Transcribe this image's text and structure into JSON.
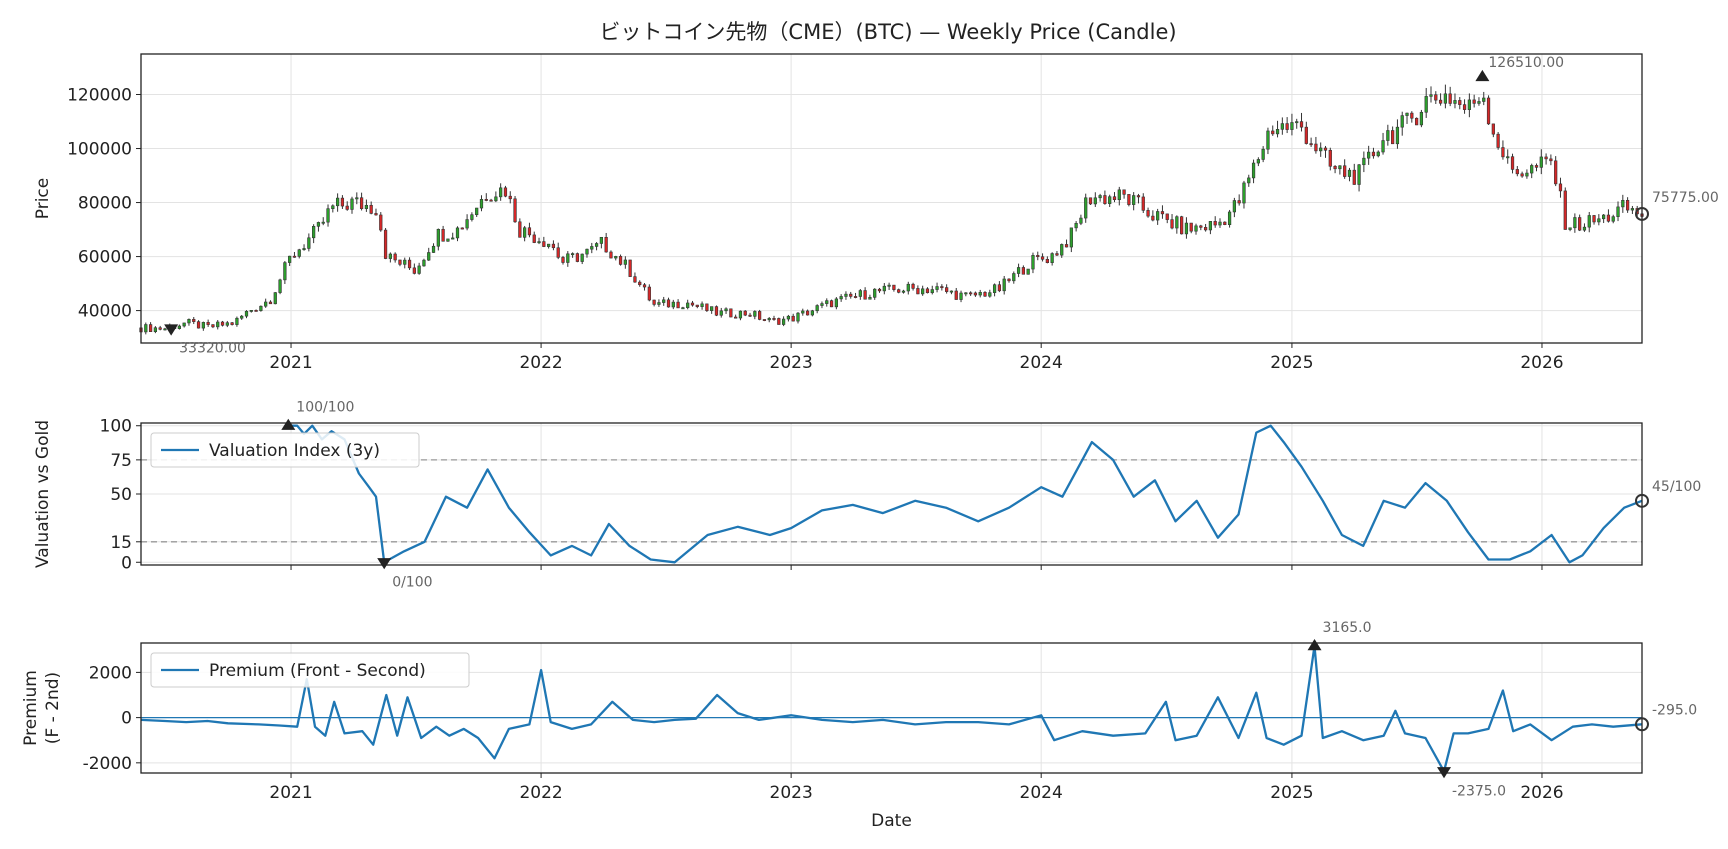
{
  "chart_data": [
    {
      "type": "candlestick",
      "panel": "price",
      "title": "ビットコイン先物（CME）(BTC) — Weekly Price (Candle)",
      "ylabel": "Price",
      "ylim": [
        28000,
        135000
      ],
      "yticks": [
        40000,
        60000,
        80000,
        100000,
        120000
      ],
      "xlim": [
        "2020-05-27",
        "2026-05-27"
      ],
      "x_ticks": [
        "2021",
        "2022",
        "2023",
        "2024",
        "2025",
        "2026"
      ],
      "colors": {
        "up": "#2ca02c",
        "down": "#d62728",
        "wick": "#333333"
      },
      "annotations": {
        "max": {
          "date": "2025-10-06",
          "value": 126510.0,
          "label": "126510.00"
        },
        "min": {
          "date": "2020-07-10",
          "value": 33320.0,
          "label": "33320.00"
        },
        "last": {
          "date": "2026-05-27",
          "value": 75775.0,
          "label": "75775.00"
        }
      },
      "close_anchors": [
        [
          "2020-05-27",
          33600
        ],
        [
          "2020-07-01",
          33400
        ],
        [
          "2020-08-01",
          35500
        ],
        [
          "2020-09-01",
          33800
        ],
        [
          "2020-10-10",
          35500
        ],
        [
          "2020-11-01",
          40000
        ],
        [
          "2020-12-01",
          44000
        ],
        [
          "2021-01-01",
          60000
        ],
        [
          "2021-02-10",
          70000
        ],
        [
          "2021-03-01",
          78000
        ],
        [
          "2021-04-01",
          80000
        ],
        [
          "2021-05-07",
          78000
        ],
        [
          "2021-05-20",
          60000
        ],
        [
          "2021-07-01",
          55000
        ],
        [
          "2021-08-01",
          68000
        ],
        [
          "2021-09-01",
          70000
        ],
        [
          "2021-10-15",
          84000
        ],
        [
          "2021-11-10",
          85000
        ],
        [
          "2021-12-01",
          70000
        ],
        [
          "2022-01-15",
          65000
        ],
        [
          "2022-02-01",
          58000
        ],
        [
          "2022-03-15",
          62000
        ],
        [
          "2022-04-01",
          65000
        ],
        [
          "2022-05-10",
          55000
        ],
        [
          "2022-06-15",
          42000
        ],
        [
          "2022-08-01",
          43000
        ],
        [
          "2022-09-15",
          39000
        ],
        [
          "2022-11-01",
          39000
        ],
        [
          "2022-12-01",
          36000
        ],
        [
          "2023-01-01",
          37000
        ],
        [
          "2023-03-01",
          43000
        ],
        [
          "2023-05-01",
          47000
        ],
        [
          "2023-06-15",
          48000
        ],
        [
          "2023-08-01",
          48000
        ],
        [
          "2023-09-15",
          45000
        ],
        [
          "2023-11-01",
          48000
        ],
        [
          "2023-12-15",
          58000
        ],
        [
          "2024-01-15",
          60000
        ],
        [
          "2024-02-15",
          68000
        ],
        [
          "2024-03-10",
          82000
        ],
        [
          "2024-05-01",
          82000
        ],
        [
          "2024-06-15",
          75000
        ],
        [
          "2024-08-01",
          70000
        ],
        [
          "2024-09-15",
          72000
        ],
        [
          "2024-10-15",
          80000
        ],
        [
          "2024-11-10",
          95000
        ],
        [
          "2024-12-01",
          108000
        ],
        [
          "2025-01-15",
          108000
        ],
        [
          "2025-03-01",
          92000
        ],
        [
          "2025-04-10",
          90000
        ],
        [
          "2025-05-15",
          105000
        ],
        [
          "2025-06-15",
          108000
        ],
        [
          "2025-07-15",
          118000
        ],
        [
          "2025-08-15",
          120000
        ],
        [
          "2025-09-15",
          114000
        ],
        [
          "2025-10-06",
          122000
        ],
        [
          "2025-10-20",
          108000
        ],
        [
          "2025-11-15",
          92000
        ],
        [
          "2025-12-15",
          92000
        ],
        [
          "2026-01-15",
          95000
        ],
        [
          "2026-02-05",
          72000
        ],
        [
          "2026-03-01",
          72000
        ],
        [
          "2026-04-01",
          74000
        ],
        [
          "2026-05-01",
          78000
        ],
        [
          "2026-05-27",
          75775
        ]
      ]
    },
    {
      "type": "line",
      "panel": "valuation",
      "ylabel": "Valuation vs Gold",
      "ylim": [
        -2,
        102
      ],
      "yticks": [
        0,
        15,
        50,
        75,
        100
      ],
      "hlines": [
        75,
        15
      ],
      "series": [
        {
          "name": "Valuation Index (3y)",
          "color": "#1f77b4",
          "points": [
            [
              "2020-12-28",
              100
            ],
            [
              "2021-01-10",
              100
            ],
            [
              "2021-01-20",
              94
            ],
            [
              "2021-02-01",
              100
            ],
            [
              "2021-02-15",
              90
            ],
            [
              "2021-03-01",
              96
            ],
            [
              "2021-03-20",
              90
            ],
            [
              "2021-04-10",
              65
            ],
            [
              "2021-04-25",
              55
            ],
            [
              "2021-05-05",
              48
            ],
            [
              "2021-05-17",
              0
            ],
            [
              "2021-06-15",
              8
            ],
            [
              "2021-07-15",
              15
            ],
            [
              "2021-08-15",
              48
            ],
            [
              "2021-09-15",
              40
            ],
            [
              "2021-10-15",
              68
            ],
            [
              "2021-11-15",
              40
            ],
            [
              "2021-12-15",
              22
            ],
            [
              "2022-01-15",
              5
            ],
            [
              "2022-02-15",
              12
            ],
            [
              "2022-03-15",
              5
            ],
            [
              "2022-04-10",
              28
            ],
            [
              "2022-05-10",
              12
            ],
            [
              "2022-06-10",
              2
            ],
            [
              "2022-07-15",
              0
            ],
            [
              "2022-09-01",
              20
            ],
            [
              "2022-10-15",
              26
            ],
            [
              "2022-12-01",
              20
            ],
            [
              "2023-01-01",
              25
            ],
            [
              "2023-02-15",
              38
            ],
            [
              "2023-04-01",
              42
            ],
            [
              "2023-05-15",
              36
            ],
            [
              "2023-07-01",
              45
            ],
            [
              "2023-08-15",
              40
            ],
            [
              "2023-10-01",
              30
            ],
            [
              "2023-11-15",
              40
            ],
            [
              "2024-01-01",
              55
            ],
            [
              "2024-02-01",
              48
            ],
            [
              "2024-03-01",
              75
            ],
            [
              "2024-03-15",
              88
            ],
            [
              "2024-04-15",
              75
            ],
            [
              "2024-05-15",
              48
            ],
            [
              "2024-06-15",
              60
            ],
            [
              "2024-07-15",
              30
            ],
            [
              "2024-08-15",
              45
            ],
            [
              "2024-09-15",
              18
            ],
            [
              "2024-10-15",
              35
            ],
            [
              "2024-11-10",
              95
            ],
            [
              "2024-12-01",
              100
            ],
            [
              "2024-12-20",
              88
            ],
            [
              "2025-01-15",
              70
            ],
            [
              "2025-02-15",
              45
            ],
            [
              "2025-03-15",
              20
            ],
            [
              "2025-04-15",
              12
            ],
            [
              "2025-05-15",
              45
            ],
            [
              "2025-06-15",
              40
            ],
            [
              "2025-07-15",
              58
            ],
            [
              "2025-08-15",
              45
            ],
            [
              "2025-09-15",
              22
            ],
            [
              "2025-10-15",
              2
            ],
            [
              "2025-11-15",
              2
            ],
            [
              "2025-12-15",
              8
            ],
            [
              "2026-01-15",
              20
            ],
            [
              "2026-02-10",
              0
            ],
            [
              "2026-03-01",
              5
            ],
            [
              "2026-04-01",
              25
            ],
            [
              "2026-05-01",
              40
            ],
            [
              "2026-05-27",
              45
            ]
          ]
        }
      ],
      "annotations": {
        "max": {
          "date": "2020-12-28",
          "value": 100,
          "label": "100/100"
        },
        "min": {
          "date": "2021-05-17",
          "value": 0,
          "label": "0/100"
        },
        "last": {
          "date": "2026-05-27",
          "value": 45,
          "label": "45/100"
        }
      }
    },
    {
      "type": "line",
      "panel": "premium",
      "ylabel": [
        "Premium",
        "(F - 2nd)"
      ],
      "xlabel": "Date",
      "ylim": [
        -2450,
        3300
      ],
      "yticks": [
        -2000,
        0,
        2000
      ],
      "x_ticks": [
        "2021",
        "2022",
        "2023",
        "2024",
        "2025",
        "2026"
      ],
      "series": [
        {
          "name": "Premium (Front - Second)",
          "color": "#1f77b4",
          "points": [
            [
              "2020-05-27",
              -100
            ],
            [
              "2020-07-01",
              -150
            ],
            [
              "2020-08-01",
              -200
            ],
            [
              "2020-09-01",
              -150
            ],
            [
              "2020-10-01",
              -250
            ],
            [
              "2020-11-15",
              -300
            ],
            [
              "2020-12-15",
              -350
            ],
            [
              "2021-01-10",
              -400
            ],
            [
              "2021-01-24",
              1700
            ],
            [
              "2021-02-05",
              -400
            ],
            [
              "2021-02-20",
              -800
            ],
            [
              "2021-03-05",
              700
            ],
            [
              "2021-03-20",
              -700
            ],
            [
              "2021-04-15",
              -600
            ],
            [
              "2021-05-01",
              -1200
            ],
            [
              "2021-05-20",
              1000
            ],
            [
              "2021-06-05",
              -800
            ],
            [
              "2021-06-20",
              900
            ],
            [
              "2021-07-10",
              -900
            ],
            [
              "2021-08-01",
              -400
            ],
            [
              "2021-08-20",
              -800
            ],
            [
              "2021-09-10",
              -500
            ],
            [
              "2021-10-01",
              -900
            ],
            [
              "2021-10-25",
              -1800
            ],
            [
              "2021-11-15",
              -500
            ],
            [
              "2021-12-15",
              -300
            ],
            [
              "2022-01-01",
              2100
            ],
            [
              "2022-01-15",
              -200
            ],
            [
              "2022-02-15",
              -500
            ],
            [
              "2022-03-15",
              -300
            ],
            [
              "2022-04-15",
              700
            ],
            [
              "2022-05-15",
              -100
            ],
            [
              "2022-06-15",
              -200
            ],
            [
              "2022-07-15",
              -100
            ],
            [
              "2022-08-15",
              -50
            ],
            [
              "2022-09-15",
              1000
            ],
            [
              "2022-10-15",
              200
            ],
            [
              "2022-11-15",
              -100
            ],
            [
              "2023-01-01",
              100
            ],
            [
              "2023-02-15",
              -100
            ],
            [
              "2023-04-01",
              -200
            ],
            [
              "2023-05-15",
              -100
            ],
            [
              "2023-07-01",
              -300
            ],
            [
              "2023-08-15",
              -200
            ],
            [
              "2023-10-01",
              -200
            ],
            [
              "2023-11-15",
              -300
            ],
            [
              "2024-01-01",
              100
            ],
            [
              "2024-01-20",
              -1000
            ],
            [
              "2024-03-01",
              -600
            ],
            [
              "2024-04-15",
              -800
            ],
            [
              "2024-06-01",
              -700
            ],
            [
              "2024-07-01",
              700
            ],
            [
              "2024-07-15",
              -1000
            ],
            [
              "2024-08-15",
              -800
            ],
            [
              "2024-09-15",
              900
            ],
            [
              "2024-10-15",
              -900
            ],
            [
              "2024-11-10",
              1100
            ],
            [
              "2024-11-25",
              -900
            ],
            [
              "2024-12-20",
              -1200
            ],
            [
              "2025-01-15",
              -800
            ],
            [
              "2025-02-03",
              3165
            ],
            [
              "2025-02-15",
              -900
            ],
            [
              "2025-03-15",
              -600
            ],
            [
              "2025-04-15",
              -1000
            ],
            [
              "2025-05-15",
              -800
            ],
            [
              "2025-06-01",
              300
            ],
            [
              "2025-06-15",
              -700
            ],
            [
              "2025-07-15",
              -900
            ],
            [
              "2025-08-11",
              -2375
            ],
            [
              "2025-08-25",
              -700
            ],
            [
              "2025-09-15",
              -700
            ],
            [
              "2025-10-15",
              -500
            ],
            [
              "2025-11-05",
              1200
            ],
            [
              "2025-11-20",
              -600
            ],
            [
              "2025-12-15",
              -300
            ],
            [
              "2026-01-15",
              -1000
            ],
            [
              "2026-02-15",
              -400
            ],
            [
              "2026-03-15",
              -300
            ],
            [
              "2026-04-15",
              -400
            ],
            [
              "2026-05-27",
              -295
            ]
          ]
        }
      ],
      "annotations": {
        "max": {
          "date": "2025-02-03",
          "value": 3165.0,
          "label": "3165.0"
        },
        "min": {
          "date": "2025-08-11",
          "value": -2375.0,
          "label": "-2375.0"
        },
        "last": {
          "date": "2026-05-27",
          "value": -295.0,
          "label": "-295.0"
        }
      }
    }
  ]
}
